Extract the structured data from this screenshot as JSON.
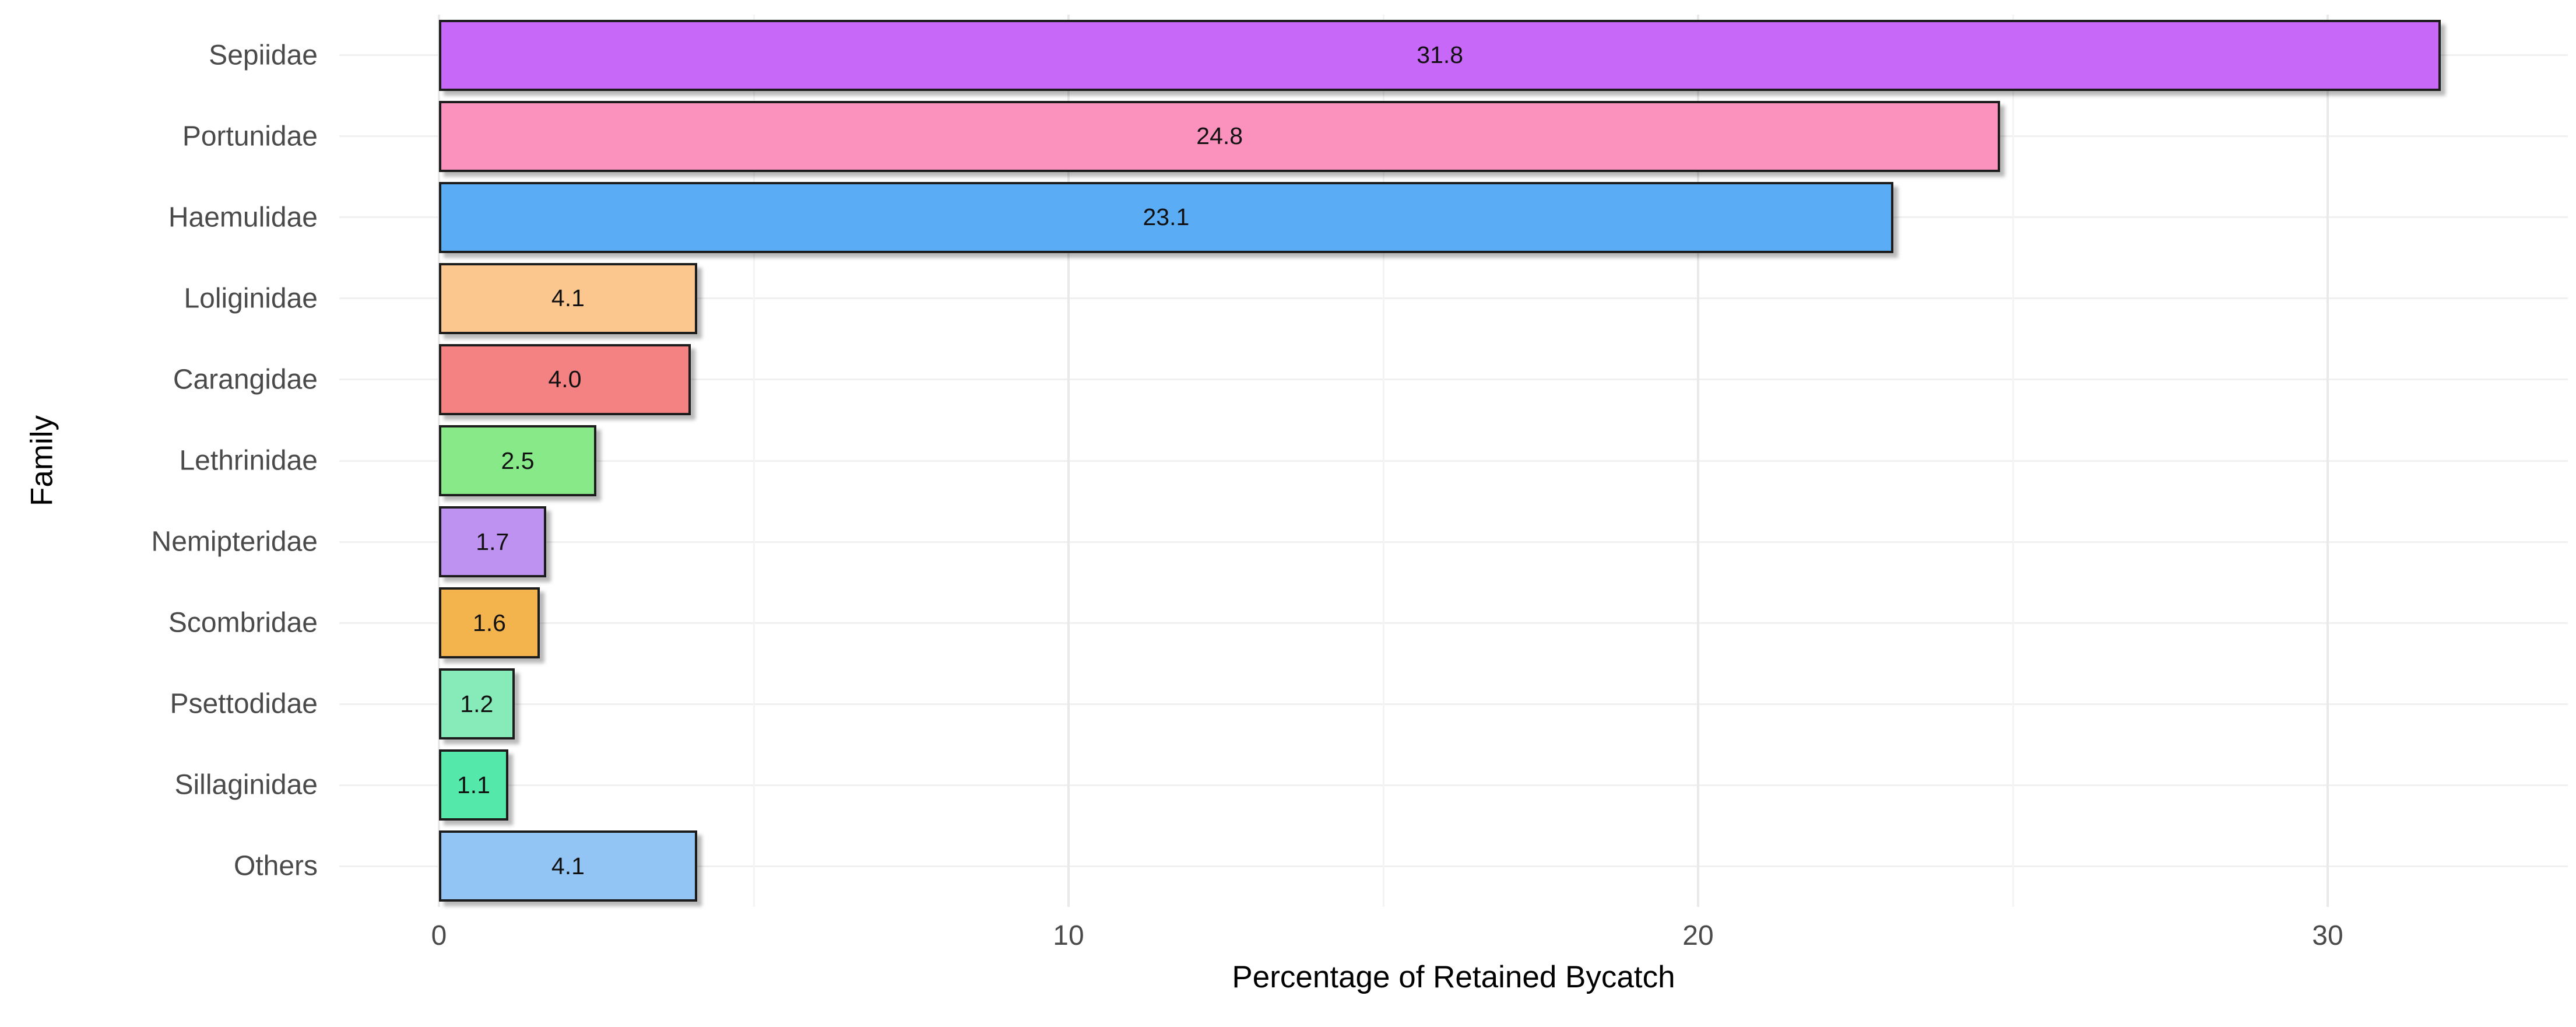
{
  "chart_data": {
    "type": "bar",
    "orientation": "horizontal",
    "title": "",
    "xlabel": "Percentage of Retained Bycatch",
    "ylabel": "Family",
    "categories": [
      "Sepiidae",
      "Portunidae",
      "Haemulidae",
      "Loliginidae",
      "Carangidae",
      "Lethrinidae",
      "Nemipteridae",
      "Scombridae",
      "Psettodidae",
      "Sillaginidae",
      "Others"
    ],
    "values": [
      31.8,
      24.8,
      23.1,
      4.1,
      4.0,
      2.5,
      1.7,
      1.6,
      1.2,
      1.1,
      4.1
    ],
    "value_labels": [
      "31.8",
      "24.8",
      "23.1",
      "4.1",
      "4.0",
      "2.5",
      "1.7",
      "1.6",
      "1.2",
      "1.1",
      "4.1"
    ],
    "bar_colors": [
      "#C768F8",
      "#FB92BD",
      "#5AACF5",
      "#FBC78F",
      "#F58282",
      "#87E988",
      "#BD92F0",
      "#F4B44D",
      "#86EBB9",
      "#55E8AB",
      "#92C5F3"
    ],
    "x_ticks": [
      0,
      10,
      20,
      30
    ],
    "x_minor_ticks": [
      5,
      15,
      25
    ],
    "xlim": [
      -1.6,
      33.8
    ],
    "grid": true,
    "legend": "none",
    "colors": {
      "background": "#ffffff",
      "bar_border": "#1c1c1c",
      "grid_major": "#e9e9e9",
      "grid_minor": "#f4f4f4",
      "axis_text": "#4a4a4a",
      "axis_title": "#000000",
      "bar_label_text": "#111111"
    }
  }
}
